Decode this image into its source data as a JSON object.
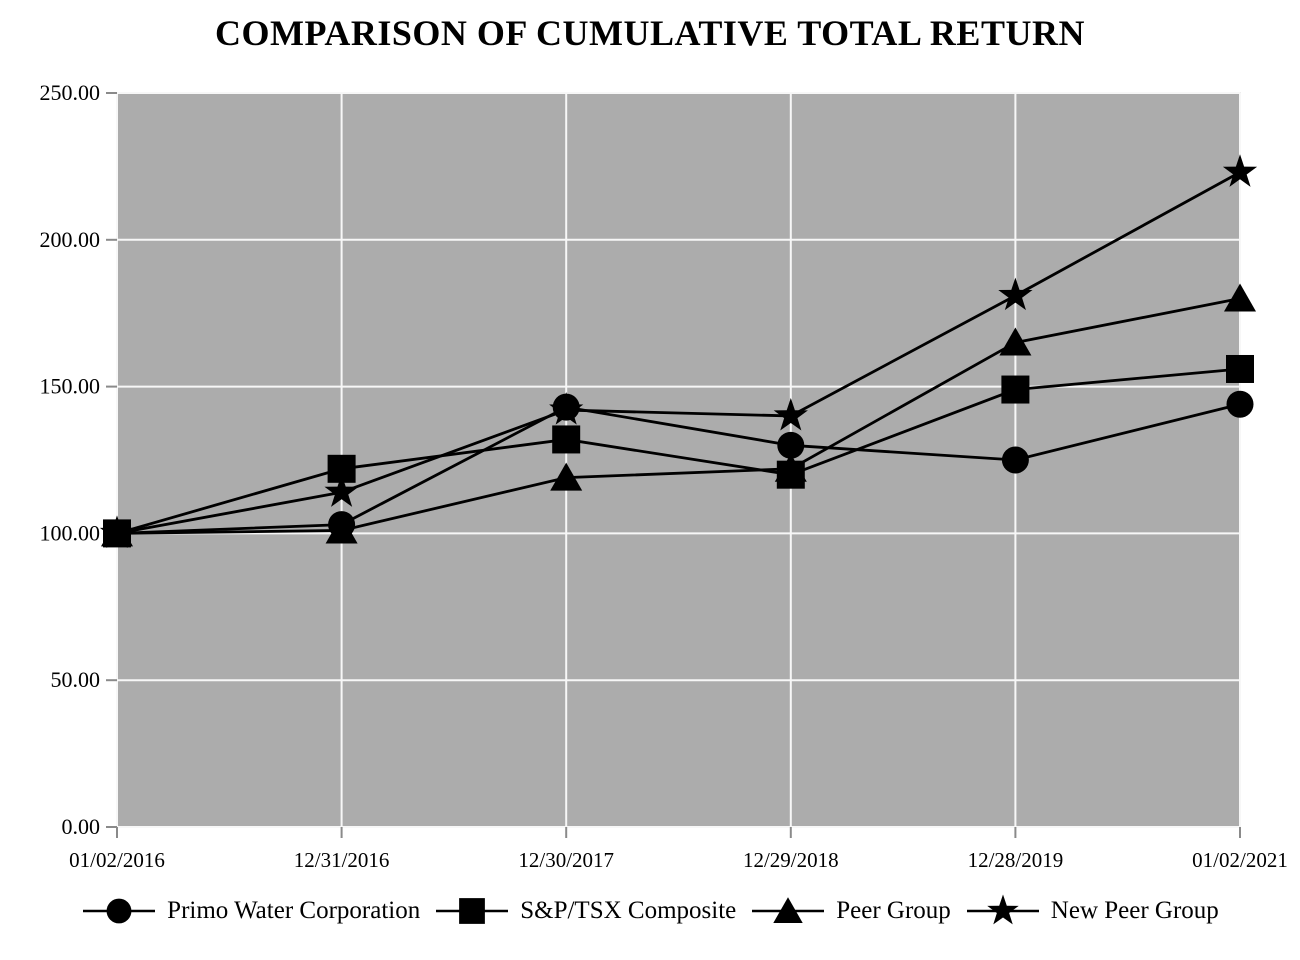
{
  "title": "COMPARISON OF CUMULATIVE TOTAL RETURN",
  "colors": {
    "page_bg": "#FFFFFF",
    "plot_bg": "#ACACAC",
    "grid": "#F7F7F7",
    "tick": "#8A8A8A",
    "series": "#000000",
    "text": "#000000"
  },
  "chart_data": {
    "type": "line",
    "title": "COMPARISON OF CUMULATIVE TOTAL RETURN",
    "categories": [
      "01/02/2016",
      "12/31/2016",
      "12/30/2017",
      "12/29/2018",
      "12/28/2019",
      "01/02/2021"
    ],
    "series": [
      {
        "name": "Primo Water Corporation",
        "marker": "circle",
        "values": [
          100,
          103,
          143,
          130,
          125,
          144
        ]
      },
      {
        "name": "S&P/TSX Composite",
        "marker": "square",
        "values": [
          100,
          122,
          132,
          120,
          149,
          156
        ]
      },
      {
        "name": "Peer Group",
        "marker": "triangle",
        "values": [
          100,
          101,
          119,
          122,
          165,
          180
        ]
      },
      {
        "name": "New Peer Group",
        "marker": "star",
        "values": [
          100,
          114,
          142,
          140,
          181,
          223
        ]
      }
    ],
    "draw_order": [
      3,
      2,
      0,
      1
    ],
    "ylim": [
      0,
      250
    ],
    "y_ticks": [
      0,
      50,
      100,
      150,
      200,
      250
    ],
    "y_tick_labels": [
      "0.00",
      "50.00",
      "100.00",
      "150.00",
      "200.00",
      "250.00"
    ],
    "grid": true,
    "legend_position": "bottom",
    "line_color": "#000000"
  }
}
